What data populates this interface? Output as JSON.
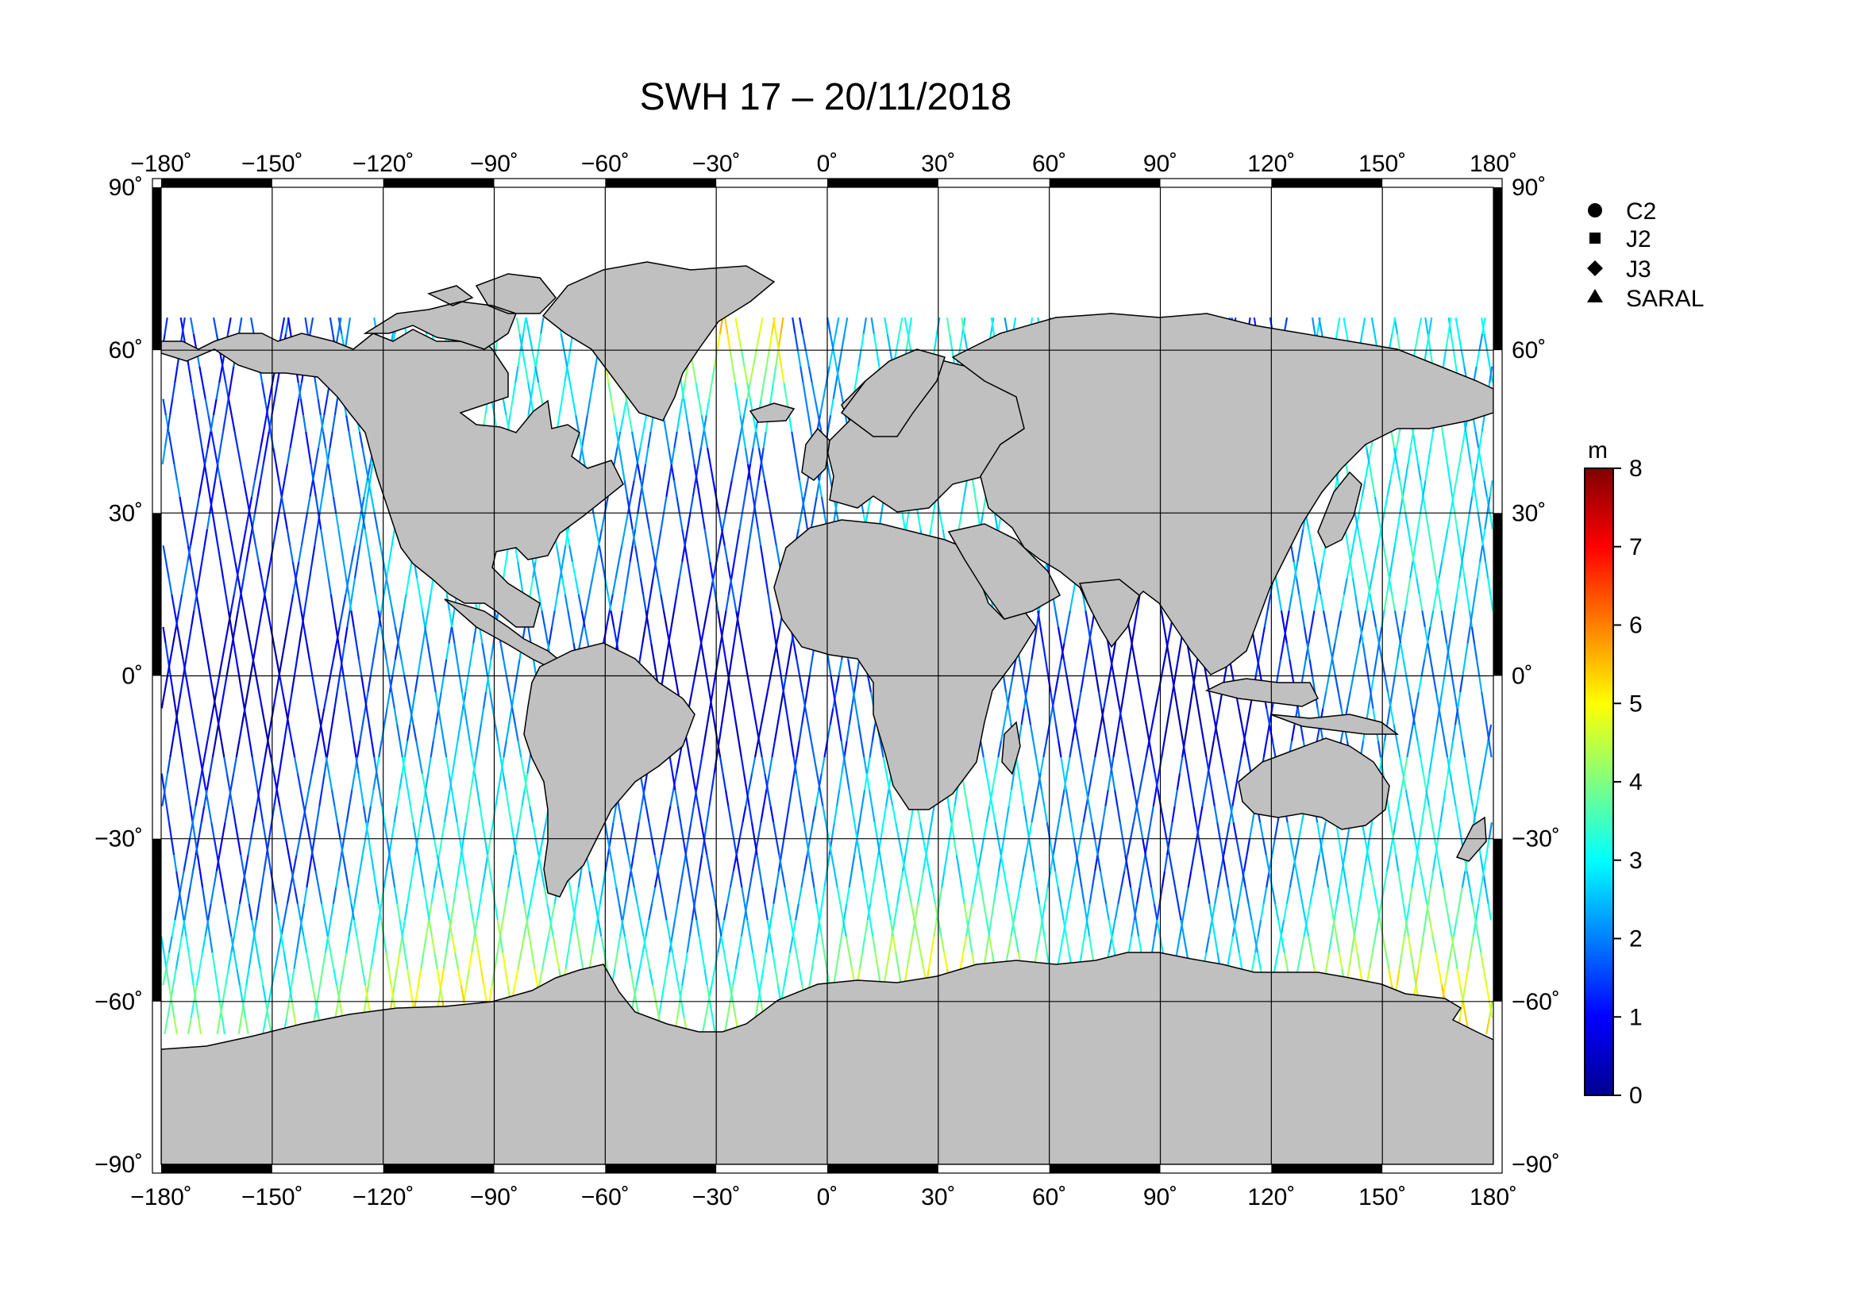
{
  "title": "SWH 17 – 20/11/2018",
  "map": {
    "projection": "plate-carree",
    "lon_range": [
      -180,
      180
    ],
    "lat_range": [
      -90,
      90
    ],
    "lon_ticks": [
      "−180˚",
      "−150˚",
      "−120˚",
      "−90˚",
      "−60˚",
      "−30˚",
      "0˚",
      "30˚",
      "60˚",
      "90˚",
      "120˚",
      "150˚",
      "180˚"
    ],
    "lat_ticks_left": [
      "90˚",
      "60˚",
      "30˚",
      "0˚",
      "−30˚",
      "−60˚",
      "−90˚"
    ],
    "lat_ticks_right": [
      "90˚",
      "60˚",
      "30˚",
      "0˚",
      "−30˚",
      "−60˚",
      "−90˚"
    ],
    "gridlines": true,
    "land_color": "#c0c0c0",
    "ocean_color": "#ffffff"
  },
  "legend": {
    "placement": "top-right",
    "items": [
      {
        "symbol": "circle",
        "label": "C2"
      },
      {
        "symbol": "square",
        "label": "J2"
      },
      {
        "symbol": "diamond",
        "label": "J3"
      },
      {
        "symbol": "triangle",
        "label": "SARAL"
      }
    ]
  },
  "colorbar": {
    "unit": "m",
    "min": 0,
    "max": 8,
    "tick_labels": [
      "8",
      "7",
      "6",
      "5",
      "4",
      "3",
      "2",
      "1",
      "0"
    ],
    "colormap": "jet"
  }
}
